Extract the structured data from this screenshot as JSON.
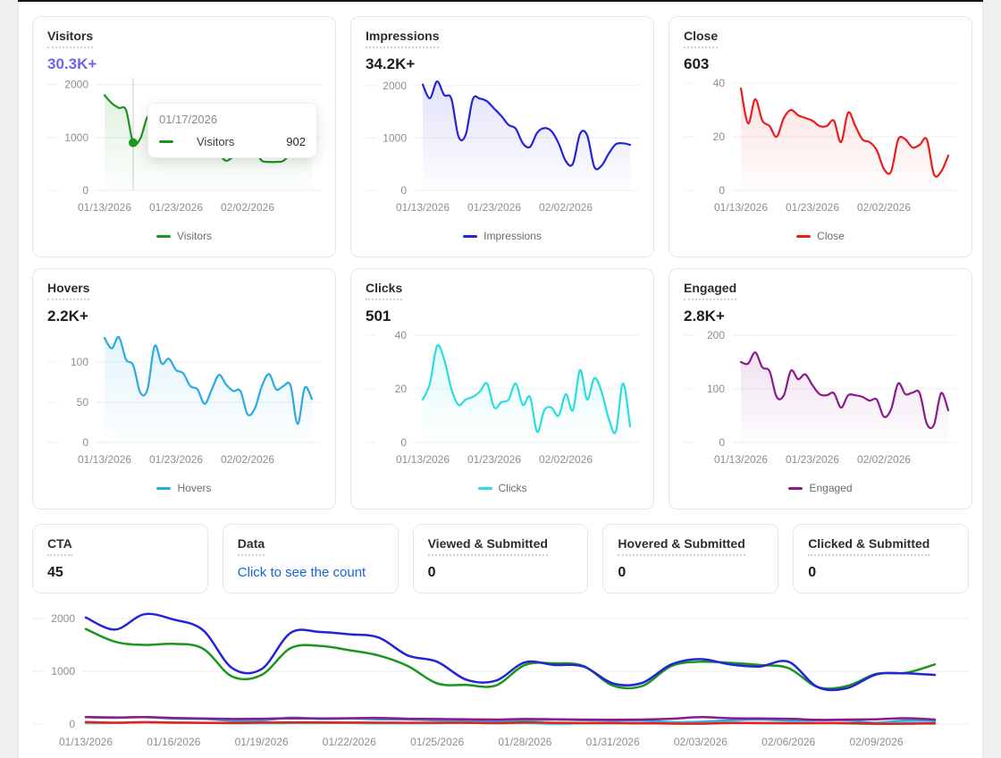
{
  "page": {
    "background": "#ffffff",
    "gutter_color": "#f0f0f0",
    "topline_color": "#161616",
    "link_color": "#1667dd"
  },
  "chart_data": {
    "mini_charts": [
      {
        "type": "line",
        "title": "Visitors",
        "value": "30.3K+",
        "value_color": "#6c63f1",
        "legend": "Visitors",
        "color": "#1a961e",
        "y_ticks": [
          2000,
          1000,
          0
        ],
        "y_range": [
          0,
          2130
        ],
        "x_ticks": [
          {
            "label": "01/13/2026",
            "index": 0
          },
          {
            "label": "01/23/2026",
            "index": 10
          },
          {
            "label": "02/02/2026",
            "index": 20
          }
        ],
        "values": [
          1800,
          1650,
          1560,
          1520,
          902,
          980,
          1390,
          1400,
          1280,
          1180,
          1080,
          1000,
          950,
          880,
          820,
          760,
          680,
          560,
          640,
          700,
          820,
          760,
          560,
          540,
          540,
          560,
          700,
          850,
          870,
          860
        ],
        "tooltip": {
          "date": "01/17/2026",
          "series": "Visitors",
          "value": "902",
          "index": 4,
          "y": 902
        }
      },
      {
        "type": "line",
        "title": "Impressions",
        "value": "34.2K+",
        "legend": "Impressions",
        "color": "#2323d9",
        "y_ticks": [
          2000,
          1000,
          0
        ],
        "y_range": [
          0,
          2150
        ],
        "x_ticks": [
          {
            "label": "01/13/2026",
            "index": 0
          },
          {
            "label": "01/23/2026",
            "index": 10
          },
          {
            "label": "02/02/2026",
            "index": 20
          }
        ],
        "values": [
          2020,
          1760,
          2080,
          1820,
          1750,
          1030,
          1060,
          1740,
          1750,
          1700,
          1560,
          1420,
          1250,
          1180,
          900,
          830,
          1100,
          1190,
          1130,
          900,
          560,
          510,
          1080,
          1050,
          450,
          470,
          700,
          880,
          900,
          870
        ]
      },
      {
        "type": "line",
        "title": "Close",
        "value": "603",
        "legend": "Close",
        "color": "#ea1c1c",
        "y_ticks": [
          40,
          20,
          0
        ],
        "y_range": [
          0,
          42
        ],
        "x_ticks": [
          {
            "label": "01/13/2026",
            "index": 0
          },
          {
            "label": "01/23/2026",
            "index": 10
          },
          {
            "label": "02/02/2026",
            "index": 20
          }
        ],
        "values": [
          38,
          25,
          34,
          26,
          24,
          20,
          27,
          30,
          28,
          27,
          26,
          24,
          24,
          26,
          18,
          29,
          24,
          19,
          18,
          15,
          8,
          7,
          19,
          19,
          16,
          17,
          19,
          6,
          7,
          13
        ]
      },
      {
        "type": "line",
        "title": "Hovers",
        "value": "2.2K+",
        "legend": "Hovers",
        "color": "#29abe2",
        "y_ticks": [
          100,
          50,
          0
        ],
        "y_range": [
          0,
          140
        ],
        "x_ticks": [
          {
            "label": "01/13/2026",
            "index": 0
          },
          {
            "label": "01/23/2026",
            "index": 10
          },
          {
            "label": "02/02/2026",
            "index": 20
          }
        ],
        "values": [
          130,
          117,
          131,
          103,
          96,
          62,
          66,
          120,
          98,
          104,
          90,
          86,
          70,
          66,
          48,
          66,
          84,
          72,
          64,
          64,
          35,
          42,
          70,
          85,
          66,
          70,
          71,
          23,
          68,
          54
        ]
      },
      {
        "type": "line",
        "title": "Clicks",
        "value": "501",
        "legend": "Clicks",
        "color": "#27dede",
        "y_ticks": [
          40,
          20,
          0
        ],
        "y_range": [
          0,
          42
        ],
        "x_ticks": [
          {
            "label": "01/13/2026",
            "index": 0
          },
          {
            "label": "01/23/2026",
            "index": 10
          },
          {
            "label": "02/02/2026",
            "index": 20
          }
        ],
        "values": [
          16,
          22,
          36,
          31,
          20,
          14,
          16,
          17,
          19,
          22,
          13,
          15,
          16,
          22,
          14,
          17,
          4,
          12,
          13,
          10,
          18,
          12,
          27,
          16,
          24,
          19,
          9,
          4,
          22,
          6
        ]
      },
      {
        "type": "line",
        "title": "Engaged",
        "value": "2.8K+",
        "legend": "Engaged",
        "color": "#8b1a8b",
        "y_ticks": [
          200,
          100,
          0
        ],
        "y_range": [
          0,
          210
        ],
        "x_ticks": [
          {
            "label": "01/13/2026",
            "index": 0
          },
          {
            "label": "01/23/2026",
            "index": 10
          },
          {
            "label": "02/02/2026",
            "index": 20
          }
        ],
        "values": [
          150,
          147,
          168,
          140,
          133,
          85,
          88,
          134,
          118,
          127,
          107,
          90,
          88,
          92,
          65,
          88,
          88,
          85,
          78,
          80,
          48,
          62,
          110,
          90,
          93,
          92,
          35,
          33,
          92,
          60
        ]
      }
    ],
    "bottom_chart": {
      "type": "line",
      "y_ticks": [
        2000,
        1000,
        0
      ],
      "y_range": [
        0,
        2270
      ],
      "x_ticks": [
        {
          "label": "01/13/2026",
          "index": 0
        },
        {
          "label": "01/16/2026",
          "index": 3
        },
        {
          "label": "01/19/2026",
          "index": 6
        },
        {
          "label": "01/22/2026",
          "index": 9
        },
        {
          "label": "01/25/2026",
          "index": 12
        },
        {
          "label": "01/28/2026",
          "index": 15
        },
        {
          "label": "01/31/2026",
          "index": 18
        },
        {
          "label": "02/03/2026",
          "index": 21
        },
        {
          "label": "02/06/2026",
          "index": 24
        },
        {
          "label": "02/09/2026",
          "index": 27
        }
      ],
      "series": [
        {
          "name": "Hovers",
          "color": "#29abe2",
          "values": [
            130,
            117,
            131,
            103,
            96,
            62,
            66,
            120,
            98,
            104,
            90,
            86,
            70,
            66,
            48,
            66,
            84,
            72,
            64,
            64,
            35,
            42,
            70,
            85,
            66,
            70,
            71,
            23,
            68,
            54
          ]
        },
        {
          "name": "Clicks",
          "color": "#27dede",
          "values": [
            16,
            22,
            36,
            31,
            20,
            14,
            16,
            17,
            19,
            22,
            13,
            15,
            16,
            22,
            14,
            17,
            4,
            12,
            13,
            10,
            18,
            12,
            27,
            16,
            24,
            19,
            9,
            4,
            22,
            6
          ]
        },
        {
          "name": "Close",
          "color": "#ea1c1c",
          "values": [
            38,
            25,
            34,
            26,
            24,
            20,
            27,
            30,
            28,
            27,
            26,
            24,
            24,
            26,
            18,
            29,
            24,
            19,
            18,
            15,
            8,
            7,
            19,
            19,
            16,
            17,
            19,
            6,
            7,
            13
          ]
        },
        {
          "name": "Engaged",
          "color": "#8b1a8b",
          "values": [
            130,
            125,
            130,
            115,
            105,
            95,
            100,
            110,
            105,
            110,
            115,
            100,
            95,
            90,
            85,
            95,
            90,
            85,
            80,
            85,
            100,
            130,
            110,
            105,
            100,
            80,
            85,
            90,
            110,
            85
          ]
        },
        {
          "name": "Visitors",
          "color": "#1a961e",
          "values": [
            1800,
            1560,
            1500,
            1520,
            1430,
            900,
            930,
            1440,
            1480,
            1400,
            1300,
            1100,
            770,
            740,
            730,
            1120,
            1150,
            1100,
            730,
            720,
            1100,
            1180,
            1160,
            1120,
            1060,
            700,
            720,
            950,
            970,
            1130
          ]
        },
        {
          "name": "Impressions",
          "color": "#2323d9",
          "values": [
            2020,
            1790,
            2080,
            1980,
            1780,
            1060,
            1040,
            1730,
            1745,
            1700,
            1640,
            1300,
            1180,
            840,
            820,
            1170,
            1120,
            1090,
            770,
            780,
            1130,
            1230,
            1130,
            1090,
            1180,
            700,
            680,
            940,
            960,
            930
          ]
        }
      ]
    }
  },
  "stat_cards": [
    {
      "title": "CTA",
      "value": "45"
    },
    {
      "title": "Data",
      "link": "Click to see the count"
    },
    {
      "title": "Viewed & Submitted",
      "value": "0"
    },
    {
      "title": "Hovered & Submitted",
      "value": "0"
    },
    {
      "title": "Clicked & Submitted",
      "value": "0"
    }
  ]
}
